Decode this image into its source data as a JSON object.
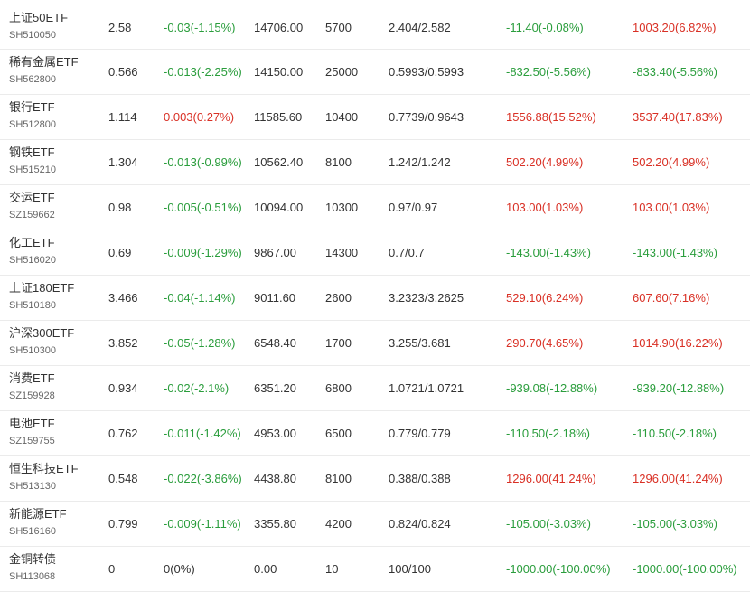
{
  "colors": {
    "up": "#d93025",
    "down": "#2a9d3c",
    "flat": "#333333"
  },
  "holdings": [
    {
      "name": "上证50ETF",
      "code": "SH510050",
      "price": "2.58",
      "change": "-0.03(-1.15%)",
      "change_dir": "down",
      "market_value": "14706.00",
      "quantity": "5700",
      "cost": "2.404/2.582",
      "today_pnl": "-11.40(-0.08%)",
      "today_dir": "down",
      "total_pnl": "1003.20(6.82%)",
      "total_dir": "up"
    },
    {
      "name": "稀有金属ETF",
      "code": "SH562800",
      "price": "0.566",
      "change": "-0.013(-2.25%)",
      "change_dir": "down",
      "market_value": "14150.00",
      "quantity": "25000",
      "cost": "0.5993/0.5993",
      "today_pnl": "-832.50(-5.56%)",
      "today_dir": "down",
      "total_pnl": "-833.40(-5.56%)",
      "total_dir": "down"
    },
    {
      "name": "银行ETF",
      "code": "SH512800",
      "price": "1.114",
      "change": "0.003(0.27%)",
      "change_dir": "up",
      "market_value": "11585.60",
      "quantity": "10400",
      "cost": "0.7739/0.9643",
      "today_pnl": "1556.88(15.52%)",
      "today_dir": "up",
      "total_pnl": "3537.40(17.83%)",
      "total_dir": "up"
    },
    {
      "name": "钢铁ETF",
      "code": "SH515210",
      "price": "1.304",
      "change": "-0.013(-0.99%)",
      "change_dir": "down",
      "market_value": "10562.40",
      "quantity": "8100",
      "cost": "1.242/1.242",
      "today_pnl": "502.20(4.99%)",
      "today_dir": "up",
      "total_pnl": "502.20(4.99%)",
      "total_dir": "up"
    },
    {
      "name": "交运ETF",
      "code": "SZ159662",
      "price": "0.98",
      "change": "-0.005(-0.51%)",
      "change_dir": "down",
      "market_value": "10094.00",
      "quantity": "10300",
      "cost": "0.97/0.97",
      "today_pnl": "103.00(1.03%)",
      "today_dir": "up",
      "total_pnl": "103.00(1.03%)",
      "total_dir": "up"
    },
    {
      "name": "化工ETF",
      "code": "SH516020",
      "price": "0.69",
      "change": "-0.009(-1.29%)",
      "change_dir": "down",
      "market_value": "9867.00",
      "quantity": "14300",
      "cost": "0.7/0.7",
      "today_pnl": "-143.00(-1.43%)",
      "today_dir": "down",
      "total_pnl": "-143.00(-1.43%)",
      "total_dir": "down"
    },
    {
      "name": "上证180ETF",
      "code": "SH510180",
      "price": "3.466",
      "change": "-0.04(-1.14%)",
      "change_dir": "down",
      "market_value": "9011.60",
      "quantity": "2600",
      "cost": "3.2323/3.2625",
      "today_pnl": "529.10(6.24%)",
      "today_dir": "up",
      "total_pnl": "607.60(7.16%)",
      "total_dir": "up"
    },
    {
      "name": "沪深300ETF",
      "code": "SH510300",
      "price": "3.852",
      "change": "-0.05(-1.28%)",
      "change_dir": "down",
      "market_value": "6548.40",
      "quantity": "1700",
      "cost": "3.255/3.681",
      "today_pnl": "290.70(4.65%)",
      "today_dir": "up",
      "total_pnl": "1014.90(16.22%)",
      "total_dir": "up"
    },
    {
      "name": "消费ETF",
      "code": "SZ159928",
      "price": "0.934",
      "change": "-0.02(-2.1%)",
      "change_dir": "down",
      "market_value": "6351.20",
      "quantity": "6800",
      "cost": "1.0721/1.0721",
      "today_pnl": "-939.08(-12.88%)",
      "today_dir": "down",
      "total_pnl": "-939.20(-12.88%)",
      "total_dir": "down"
    },
    {
      "name": "电池ETF",
      "code": "SZ159755",
      "price": "0.762",
      "change": "-0.011(-1.42%)",
      "change_dir": "down",
      "market_value": "4953.00",
      "quantity": "6500",
      "cost": "0.779/0.779",
      "today_pnl": "-110.50(-2.18%)",
      "today_dir": "down",
      "total_pnl": "-110.50(-2.18%)",
      "total_dir": "down"
    },
    {
      "name": "恒生科技ETF",
      "code": "SH513130",
      "price": "0.548",
      "change": "-0.022(-3.86%)",
      "change_dir": "down",
      "market_value": "4438.80",
      "quantity": "8100",
      "cost": "0.388/0.388",
      "today_pnl": "1296.00(41.24%)",
      "today_dir": "up",
      "total_pnl": "1296.00(41.24%)",
      "total_dir": "up"
    },
    {
      "name": "新能源ETF",
      "code": "SH516160",
      "price": "0.799",
      "change": "-0.009(-1.11%)",
      "change_dir": "down",
      "market_value": "3355.80",
      "quantity": "4200",
      "cost": "0.824/0.824",
      "today_pnl": "-105.00(-3.03%)",
      "today_dir": "down",
      "total_pnl": "-105.00(-3.03%)",
      "total_dir": "down"
    },
    {
      "name": "金铜转债",
      "code": "SH113068",
      "price": "0",
      "change": "0(0%)",
      "change_dir": "flat",
      "market_value": "0.00",
      "quantity": "10",
      "cost": "100/100",
      "today_pnl": "-1000.00(-100.00%)",
      "today_dir": "down",
      "total_pnl": "-1000.00(-100.00%)",
      "total_dir": "down"
    }
  ]
}
